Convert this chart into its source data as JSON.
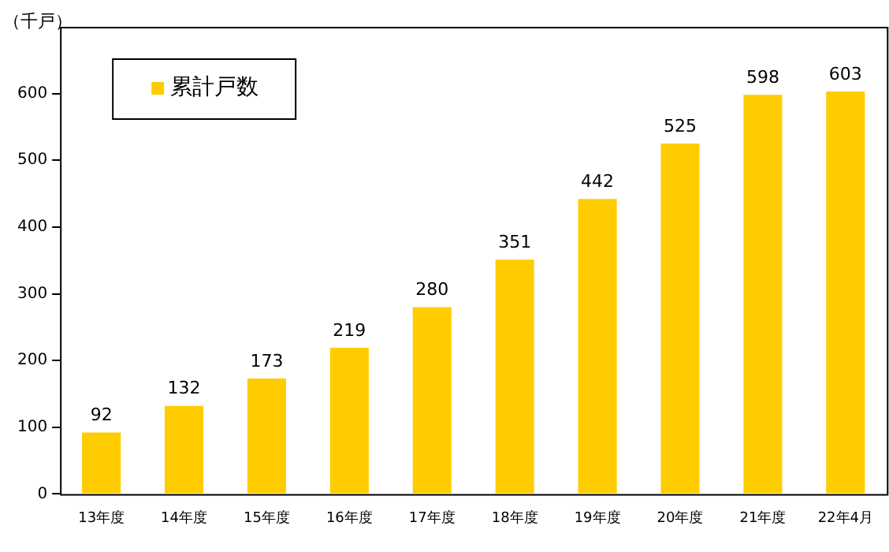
{
  "chart_data": {
    "type": "bar",
    "ylabel": "（千戸）",
    "categories": [
      "13年度",
      "14年度",
      "15年度",
      "16年度",
      "17年度",
      "18年度",
      "19年度",
      "20年度",
      "21年度",
      "22年4月"
    ],
    "series": [
      {
        "name": "累計戸数",
        "color": "#ffcc00",
        "values": [
          92,
          132,
          173,
          219,
          280,
          351,
          442,
          525,
          598,
          603
        ]
      }
    ],
    "ylim": [
      0,
      700
    ],
    "yticks": [
      0,
      100,
      200,
      300,
      400,
      500,
      600
    ],
    "grid": false,
    "legend": "top left",
    "data_labels": true
  }
}
